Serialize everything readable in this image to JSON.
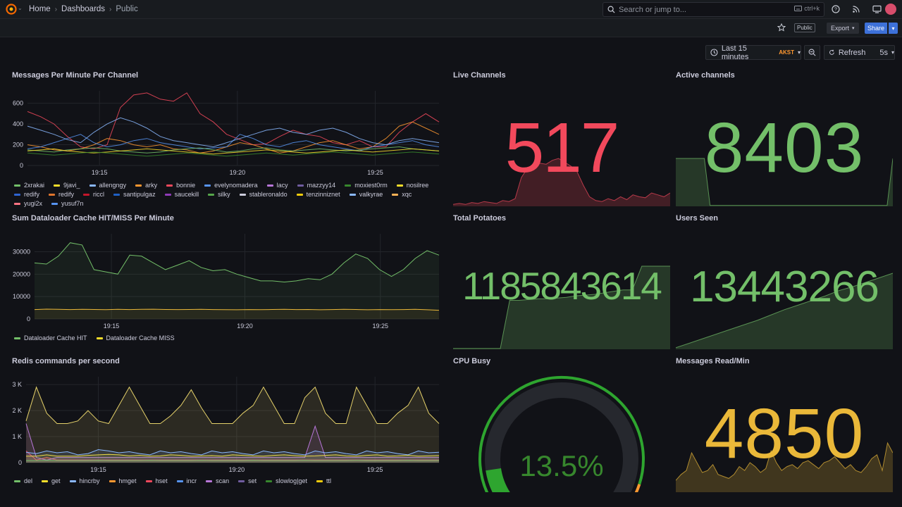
{
  "topbar": {
    "breadcrumbs": [
      "Home",
      "Dashboards",
      "Public"
    ],
    "search_placeholder": "Search or jump to...",
    "search_shortcut": "ctrl+k",
    "icons": [
      "help-icon",
      "rss-icon",
      "tv-icon"
    ]
  },
  "subbar": {
    "public_badge": "Public",
    "export_label": "Export",
    "share_label": "Share"
  },
  "timepicker": {
    "range": "Last 15 minutes",
    "timezone": "AKST",
    "refresh_label": "Refresh",
    "refresh_interval": "5s"
  },
  "colors": {
    "green": "#73bf69",
    "yellow": "#fade2a",
    "red": "#f2495c",
    "blue": "#5794f2",
    "orange": "#ff9830",
    "purple": "#b877d9",
    "stat_green": "#73bf69",
    "stat_red": "#f2495c",
    "stat_yellow": "#eab839"
  },
  "panels": {
    "messages": {
      "title": "Messages Per Minute Per Channel",
      "legend": [
        "2xrakai",
        "9javi_",
        "allengngy",
        "arky",
        "bonnie",
        "evelynomadera",
        "lacy",
        "mazzyy14",
        "moxiest0rm",
        "nosilree",
        "redify",
        "redify",
        "riccl",
        "santipulgaz",
        "saucekill",
        "silky",
        "stableronaldo",
        "tenzinniznet",
        "valkyrae",
        "xqc",
        "yugi2x",
        "yusuf7n"
      ],
      "legend_colors": [
        "#73bf69",
        "#fade2a",
        "#8ab8ff",
        "#ff9830",
        "#f2495c",
        "#5794f2",
        "#b877d9",
        "#705da0",
        "#37872d",
        "#fade2a",
        "#2f64d1",
        "#e0752d",
        "#c4162a",
        "#1f60c4",
        "#8f3bb8",
        "#56a64b",
        "#ccccdc",
        "#f2cc0c",
        "#8ab8ff",
        "#ffb357",
        "#ff7383",
        "#5794f2"
      ]
    },
    "dataloader": {
      "title": "Sum Dataloader Cache HIT/MISS Per Minute",
      "legend": [
        "Dataloader Cache HIT",
        "Dataloader Cache MISS"
      ],
      "legend_colors": [
        "#73bf69",
        "#fade2a"
      ]
    },
    "redis": {
      "title": "Redis commands per second",
      "legend": [
        "del",
        "get",
        "hincrby",
        "hmget",
        "hset",
        "incr",
        "scan",
        "set",
        "slowlog|get",
        "ttl"
      ],
      "legend_colors": [
        "#73bf69",
        "#fade2a",
        "#8ab8ff",
        "#ff9830",
        "#f2495c",
        "#5794f2",
        "#b877d9",
        "#705da0",
        "#37872d",
        "#f2cc0c"
      ]
    },
    "live_channels": {
      "title": "Live Channels",
      "value": "517"
    },
    "active_channels": {
      "title": "Active channels",
      "value": "8403"
    },
    "total_potatoes": {
      "title": "Total Potatoes",
      "value": "1185843614"
    },
    "users_seen": {
      "title": "Users Seen",
      "value": "13443266"
    },
    "cpu_busy": {
      "title": "CPU Busy",
      "value": "13.5%"
    },
    "messages_read": {
      "title": "Messages Read/Min",
      "value": "4850"
    }
  },
  "chart_data": [
    {
      "type": "line",
      "title": "Messages Per Minute Per Channel",
      "x_ticks": [
        "19:15",
        "19:20",
        "19:25"
      ],
      "y_ticks": [
        "0",
        "200",
        "400",
        "600"
      ],
      "ylim": [
        0,
        720
      ],
      "series": [
        {
          "name": "bonnie",
          "values": [
            520,
            470,
            400,
            280,
            180,
            160,
            200,
            560,
            680,
            700,
            640,
            620,
            700,
            500,
            420,
            300,
            250,
            200,
            210,
            280,
            340,
            300,
            280,
            220,
            200,
            240,
            180,
            180,
            320,
            420,
            500,
            420
          ]
        },
        {
          "name": "arky",
          "values": [
            200,
            180,
            150,
            140,
            160,
            200,
            260,
            240,
            200,
            180,
            200,
            160,
            150,
            120,
            140,
            180,
            220,
            200,
            160,
            120,
            140,
            180,
            220,
            240,
            200,
            160,
            180,
            260,
            380,
            420,
            360,
            300
          ]
        },
        {
          "name": "evelynomadera",
          "values": [
            160,
            180,
            220,
            260,
            300,
            220,
            180,
            200,
            240,
            260,
            220,
            200,
            180,
            160,
            170,
            180,
            300,
            260,
            200,
            180,
            220,
            240,
            200,
            180,
            160,
            140,
            180,
            200,
            220,
            240,
            200,
            180
          ]
        },
        {
          "name": "allengngy",
          "values": [
            380,
            340,
            300,
            250,
            220,
            320,
            400,
            460,
            420,
            360,
            280,
            240,
            220,
            200,
            180,
            220,
            260,
            300,
            340,
            360,
            320,
            300,
            340,
            360,
            320,
            260,
            220,
            200,
            240,
            260,
            240,
            220
          ]
        },
        {
          "name": "2xrakai",
          "values": [
            150,
            140,
            130,
            150,
            160,
            170,
            160,
            140,
            130,
            120,
            130,
            150,
            160,
            170,
            150,
            130,
            140,
            160,
            170,
            150,
            140,
            150,
            160,
            150,
            140,
            150,
            160,
            170,
            180,
            160,
            150,
            140
          ]
        },
        {
          "name": "9javi_",
          "values": [
            140,
            150,
            160,
            140,
            130,
            120,
            130,
            140,
            150,
            160,
            150,
            140,
            130,
            120,
            110,
            120,
            130,
            140,
            150,
            140,
            130,
            120,
            130,
            140,
            150,
            140,
            130,
            140,
            150,
            160,
            150,
            140
          ]
        },
        {
          "name": "moxiest0rm",
          "values": [
            120,
            110,
            100,
            110,
            120,
            130,
            120,
            110,
            100,
            90,
            100,
            110,
            120,
            110,
            100,
            90,
            100,
            110,
            120,
            110,
            100,
            110,
            120,
            130,
            120,
            110,
            100,
            110,
            120,
            130,
            120,
            110
          ]
        }
      ]
    },
    {
      "type": "area",
      "title": "Sum Dataloader Cache HIT/MISS Per Minute",
      "x_ticks": [
        "19:15",
        "19:20",
        "19:25"
      ],
      "y_ticks": [
        "0",
        "10000",
        "20000",
        "30000"
      ],
      "ylim": [
        0,
        38000
      ],
      "series": [
        {
          "name": "Dataloader Cache HIT",
          "values": [
            25000,
            24500,
            28000,
            34000,
            33000,
            22000,
            21000,
            20000,
            28500,
            28000,
            25000,
            22000,
            24000,
            26000,
            23000,
            21500,
            22000,
            20000,
            18500,
            17000,
            17000,
            16500,
            17000,
            18000,
            17500,
            20000,
            25000,
            29000,
            27000,
            22000,
            19000,
            22000,
            27000,
            30500,
            28500
          ]
        },
        {
          "name": "Dataloader Cache MISS",
          "values": [
            4200,
            4400,
            4300,
            4200,
            4300,
            4250,
            4150,
            4300,
            4200,
            4300,
            4350,
            4250,
            4200,
            4250,
            4300,
            4200,
            4150,
            4100,
            4200,
            4150,
            4250,
            4300,
            4200,
            4250,
            4100,
            4200,
            4300,
            4250,
            4100,
            4200,
            4150,
            4200,
            4300,
            4100,
            3900
          ]
        }
      ]
    },
    {
      "type": "area",
      "title": "Redis commands per second",
      "x_ticks": [
        "19:15",
        "19:20",
        "19:25"
      ],
      "y_ticks": [
        "0",
        "1 K",
        "2 K",
        "3 K"
      ],
      "ylim": [
        0,
        3300
      ],
      "series": [
        {
          "name": "ttl",
          "values": [
            1600,
            2900,
            1900,
            1500,
            1500,
            1600,
            2000,
            1600,
            1500,
            2200,
            2900,
            2200,
            1500,
            1500,
            1800,
            2200,
            2800,
            2100,
            1500,
            1500,
            1500,
            1900,
            2200,
            2900,
            2200,
            1500,
            1500,
            2500,
            2900,
            1900,
            1500,
            1500,
            2900,
            2200,
            1500,
            1500,
            1900,
            2200,
            2900,
            1900,
            1500
          ]
        },
        {
          "name": "hset",
          "values": [
            450,
            100,
            200,
            100,
            100,
            100,
            100,
            100,
            100,
            100,
            100,
            100,
            100,
            100,
            100,
            100,
            100,
            100,
            100,
            100,
            100,
            100,
            100,
            100,
            100,
            100,
            100,
            100,
            100,
            100,
            100,
            100,
            100,
            100,
            100,
            100,
            100,
            100,
            100,
            100,
            100
          ]
        },
        {
          "name": "scan",
          "values": [
            1500,
            200,
            100,
            200,
            200,
            200,
            200,
            200,
            200,
            200,
            200,
            200,
            200,
            200,
            200,
            200,
            200,
            200,
            200,
            200,
            200,
            200,
            200,
            200,
            200,
            200,
            200,
            200,
            1400,
            200,
            200,
            200,
            200,
            200,
            200,
            200,
            200,
            200,
            200,
            200,
            200
          ]
        },
        {
          "name": "get",
          "values": [
            250,
            250,
            300,
            250,
            250,
            250,
            280,
            300,
            320,
            300,
            260,
            280,
            250,
            260,
            300,
            280,
            250,
            260,
            270,
            250,
            300,
            280,
            260,
            250,
            280,
            300,
            270,
            250,
            260,
            280,
            300,
            260,
            250,
            280,
            300,
            250,
            260,
            280,
            250,
            260,
            270
          ]
        },
        {
          "name": "hincrby",
          "values": [
            400,
            350,
            450,
            380,
            420,
            300,
            350,
            500,
            450,
            380,
            420,
            350,
            300,
            450,
            380,
            420,
            350,
            300,
            450,
            380,
            420,
            350,
            300,
            450,
            380,
            420,
            350,
            300,
            450,
            380,
            420,
            350,
            300,
            450,
            380,
            420,
            350,
            300,
            450,
            380,
            400
          ]
        },
        {
          "name": "del",
          "values": [
            80,
            80,
            90,
            80,
            80,
            80,
            80,
            90,
            80,
            80,
            80,
            80,
            90,
            80,
            80,
            80,
            80,
            90,
            80,
            80,
            80,
            80,
            90,
            80,
            80,
            80,
            80,
            90,
            80,
            80,
            80,
            80,
            90,
            80,
            80,
            80,
            80,
            90,
            80,
            80,
            80
          ]
        }
      ]
    },
    {
      "type": "area",
      "title": "Live Channels",
      "series": [
        {
          "name": "",
          "values": [
            2,
            3,
            2,
            4,
            3,
            5,
            4,
            3,
            6,
            5,
            8,
            30,
            40,
            42,
            45,
            44,
            48,
            50,
            46,
            42,
            36,
            22,
            10,
            6,
            5,
            8,
            6,
            10,
            7,
            12,
            10,
            9,
            14,
            12,
            10,
            14
          ]
        }
      ]
    },
    {
      "type": "area",
      "title": "Active channels",
      "series": [
        {
          "name": "",
          "values": [
            58,
            58,
            58,
            58,
            58,
            58,
            1,
            1,
            1,
            1,
            1,
            1,
            1,
            1,
            1,
            1,
            1,
            1,
            1,
            1,
            1,
            1,
            1,
            1,
            1,
            1,
            1,
            1,
            1,
            1,
            1,
            1,
            1,
            1,
            1,
            1,
            1,
            1,
            58
          ]
        }
      ]
    },
    {
      "type": "area",
      "title": "Total Potatoes",
      "series": [
        {
          "name": "",
          "values": [
            1,
            1,
            1,
            1,
            1,
            1,
            66,
            66,
            67,
            68,
            68,
            69,
            70,
            72,
            73,
            74,
            76,
            78,
            80,
            80,
            112,
            112,
            112,
            112
          ]
        }
      ]
    },
    {
      "type": "area",
      "title": "Users Seen",
      "series": [
        {
          "name": "",
          "values": [
            2,
            8,
            14,
            20,
            26,
            32,
            38,
            45,
            52,
            58,
            64,
            70,
            77,
            82,
            88,
            94,
            100
          ]
        }
      ]
    },
    {
      "type": "area",
      "title": "Messages Read/Min",
      "series": [
        {
          "name": "",
          "values": [
            12,
            18,
            22,
            40,
            30,
            20,
            22,
            28,
            18,
            16,
            14,
            18,
            26,
            22,
            30,
            26,
            20,
            24,
            42,
            30,
            22,
            26,
            28,
            24,
            30,
            32,
            28,
            24,
            30,
            32,
            36,
            30,
            24,
            28,
            22,
            20,
            26,
            34,
            38,
            22,
            50,
            40
          ]
        }
      ]
    },
    {
      "type": "gauge",
      "title": "CPU Busy",
      "value": 13.5,
      "min": 0,
      "max": 100,
      "thresholds": [
        {
          "color": "#37872d",
          "value": 0
        },
        {
          "color": "#ff9830",
          "value": 90
        },
        {
          "color": "#f2495c",
          "value": 95
        }
      ]
    }
  ]
}
